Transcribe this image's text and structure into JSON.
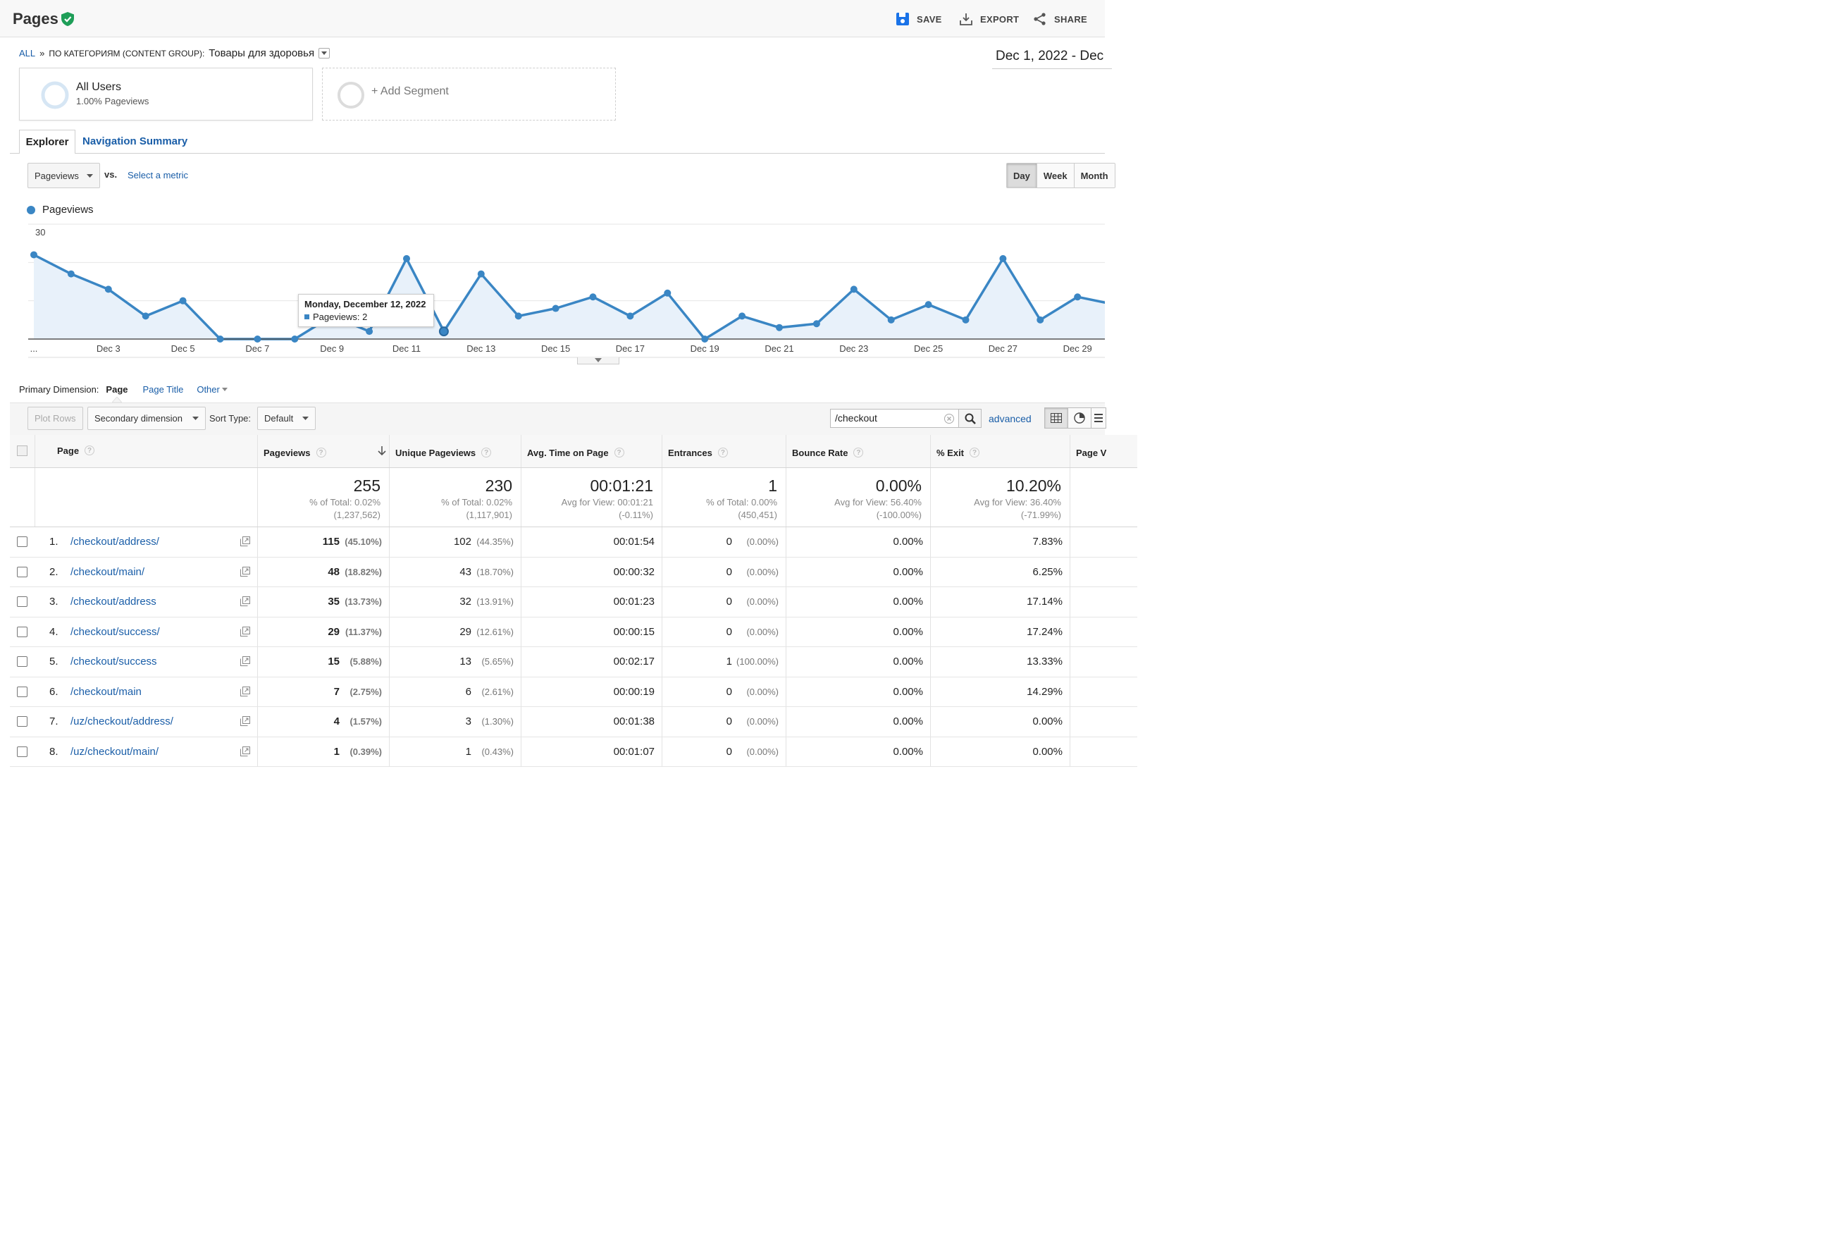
{
  "header": {
    "title": "Pages",
    "save_label": "SAVE",
    "export_label": "EXPORT",
    "share_label": "SHARE"
  },
  "breadcrumb": {
    "all": "ALL",
    "separator": "»",
    "category": "ПО КАТЕГОРИЯМ (CONTENT GROUP):",
    "value": "Товары для здоровья"
  },
  "date_range": "Dec 1, 2022 - Dec",
  "segments": {
    "all_users": {
      "name": "All Users",
      "detail": "1.00% Pageviews"
    },
    "add": "+ Add Segment"
  },
  "tabs": [
    {
      "label": "Explorer"
    },
    {
      "label": "Navigation Summary"
    }
  ],
  "metric": {
    "selected": "Pageviews",
    "vs": "vs.",
    "select_metric": "Select a metric"
  },
  "period_buttons": [
    "Day",
    "Week",
    "Month"
  ],
  "colors": {
    "series": "#3a86c4",
    "link": "#1a5ea8"
  },
  "chart_data": {
    "type": "area",
    "legend": [
      "Pageviews"
    ],
    "x": [
      "Dec 1",
      "Dec 2",
      "Dec 3",
      "Dec 4",
      "Dec 5",
      "Dec 6",
      "Dec 7",
      "Dec 8",
      "Dec 9",
      "Dec 10",
      "Dec 11",
      "Dec 12",
      "Dec 13",
      "Dec 14",
      "Dec 15",
      "Dec 16",
      "Dec 17",
      "Dec 18",
      "Dec 19",
      "Dec 20",
      "Dec 21",
      "Dec 22",
      "Dec 23",
      "Dec 24",
      "Dec 25",
      "Dec 26",
      "Dec 27",
      "Dec 28",
      "Dec 29",
      "Dec 30"
    ],
    "series": [
      {
        "name": "Pageviews",
        "values": [
          22,
          17,
          13,
          6,
          10,
          0,
          0,
          0,
          6,
          2,
          21,
          2,
          17,
          6,
          8,
          11,
          6,
          12,
          0,
          6,
          3,
          4,
          13,
          5,
          9,
          5,
          21,
          5,
          11,
          9
        ]
      }
    ],
    "x_tick_labels": [
      "...",
      "Dec 3",
      "Dec 5",
      "Dec 7",
      "Dec 9",
      "Dec 11",
      "Dec 13",
      "Dec 15",
      "Dec 17",
      "Dec 19",
      "Dec 21",
      "Dec 23",
      "Dec 25",
      "Dec 27",
      "Dec 29"
    ],
    "y_ticks": [
      10,
      20,
      30
    ],
    "ylim": [
      0,
      30
    ],
    "grid": true,
    "tooltip": {
      "title": "Monday, December 12, 2022",
      "label": "Pageviews: 2"
    }
  },
  "primary_dimension": {
    "label": "Primary Dimension:",
    "current": "Page",
    "options": [
      "Page Title",
      "Other"
    ]
  },
  "toolbar": {
    "plot_rows": "Plot Rows",
    "secondary_dimension": "Secondary dimension",
    "sort_label": "Sort Type:",
    "sort_value": "Default",
    "search_value": "/checkout",
    "advanced": "advanced"
  },
  "table": {
    "columns": [
      "Page",
      "Pageviews",
      "Unique Pageviews",
      "Avg. Time on Page",
      "Entrances",
      "Bounce Rate",
      "% Exit",
      "Page V"
    ],
    "totals": {
      "pageviews": {
        "value": "255",
        "line1": "% of Total: 0.02%",
        "line2": "(1,237,562)"
      },
      "unique": {
        "value": "230",
        "line1": "% of Total: 0.02%",
        "line2": "(1,117,901)"
      },
      "avg_time": {
        "value": "00:01:21",
        "line1": "Avg for View: 00:01:21",
        "line2": "(-0.11%)"
      },
      "entrances": {
        "value": "1",
        "line1": "% of Total: 0.00%",
        "line2": "(450,451)"
      },
      "bounce": {
        "value": "0.00%",
        "line1": "Avg for View: 56.40%",
        "line2": "(-100.00%)"
      },
      "exit": {
        "value": "10.20%",
        "line1": "Avg for View: 36.40%",
        "line2": "(-71.99%)"
      }
    },
    "rows": [
      {
        "no": "1.",
        "page": "/checkout/address/",
        "pv": "115",
        "pv_pct": "(45.10%)",
        "upv": "102",
        "upv_pct": "(44.35%)",
        "time": "00:01:54",
        "ent": "0",
        "ent_pct": "(0.00%)",
        "bounce": "0.00%",
        "exit": "7.83%"
      },
      {
        "no": "2.",
        "page": "/checkout/main/",
        "pv": "48",
        "pv_pct": "(18.82%)",
        "upv": "43",
        "upv_pct": "(18.70%)",
        "time": "00:00:32",
        "ent": "0",
        "ent_pct": "(0.00%)",
        "bounce": "0.00%",
        "exit": "6.25%"
      },
      {
        "no": "3.",
        "page": "/checkout/address",
        "pv": "35",
        "pv_pct": "(13.73%)",
        "upv": "32",
        "upv_pct": "(13.91%)",
        "time": "00:01:23",
        "ent": "0",
        "ent_pct": "(0.00%)",
        "bounce": "0.00%",
        "exit": "17.14%"
      },
      {
        "no": "4.",
        "page": "/checkout/success/",
        "pv": "29",
        "pv_pct": "(11.37%)",
        "upv": "29",
        "upv_pct": "(12.61%)",
        "time": "00:00:15",
        "ent": "0",
        "ent_pct": "(0.00%)",
        "bounce": "0.00%",
        "exit": "17.24%"
      },
      {
        "no": "5.",
        "page": "/checkout/success",
        "pv": "15",
        "pv_pct": "(5.88%)",
        "upv": "13",
        "upv_pct": "(5.65%)",
        "time": "00:02:17",
        "ent": "1",
        "ent_pct": "(100.00%)",
        "bounce": "0.00%",
        "exit": "13.33%"
      },
      {
        "no": "6.",
        "page": "/checkout/main",
        "pv": "7",
        "pv_pct": "(2.75%)",
        "upv": "6",
        "upv_pct": "(2.61%)",
        "time": "00:00:19",
        "ent": "0",
        "ent_pct": "(0.00%)",
        "bounce": "0.00%",
        "exit": "14.29%"
      },
      {
        "no": "7.",
        "page": "/uz/checkout/address/",
        "pv": "4",
        "pv_pct": "(1.57%)",
        "upv": "3",
        "upv_pct": "(1.30%)",
        "time": "00:01:38",
        "ent": "0",
        "ent_pct": "(0.00%)",
        "bounce": "0.00%",
        "exit": "0.00%"
      },
      {
        "no": "8.",
        "page": "/uz/checkout/main/",
        "pv": "1",
        "pv_pct": "(0.39%)",
        "upv": "1",
        "upv_pct": "(0.43%)",
        "time": "00:01:07",
        "ent": "0",
        "ent_pct": "(0.00%)",
        "bounce": "0.00%",
        "exit": "0.00%"
      }
    ]
  }
}
